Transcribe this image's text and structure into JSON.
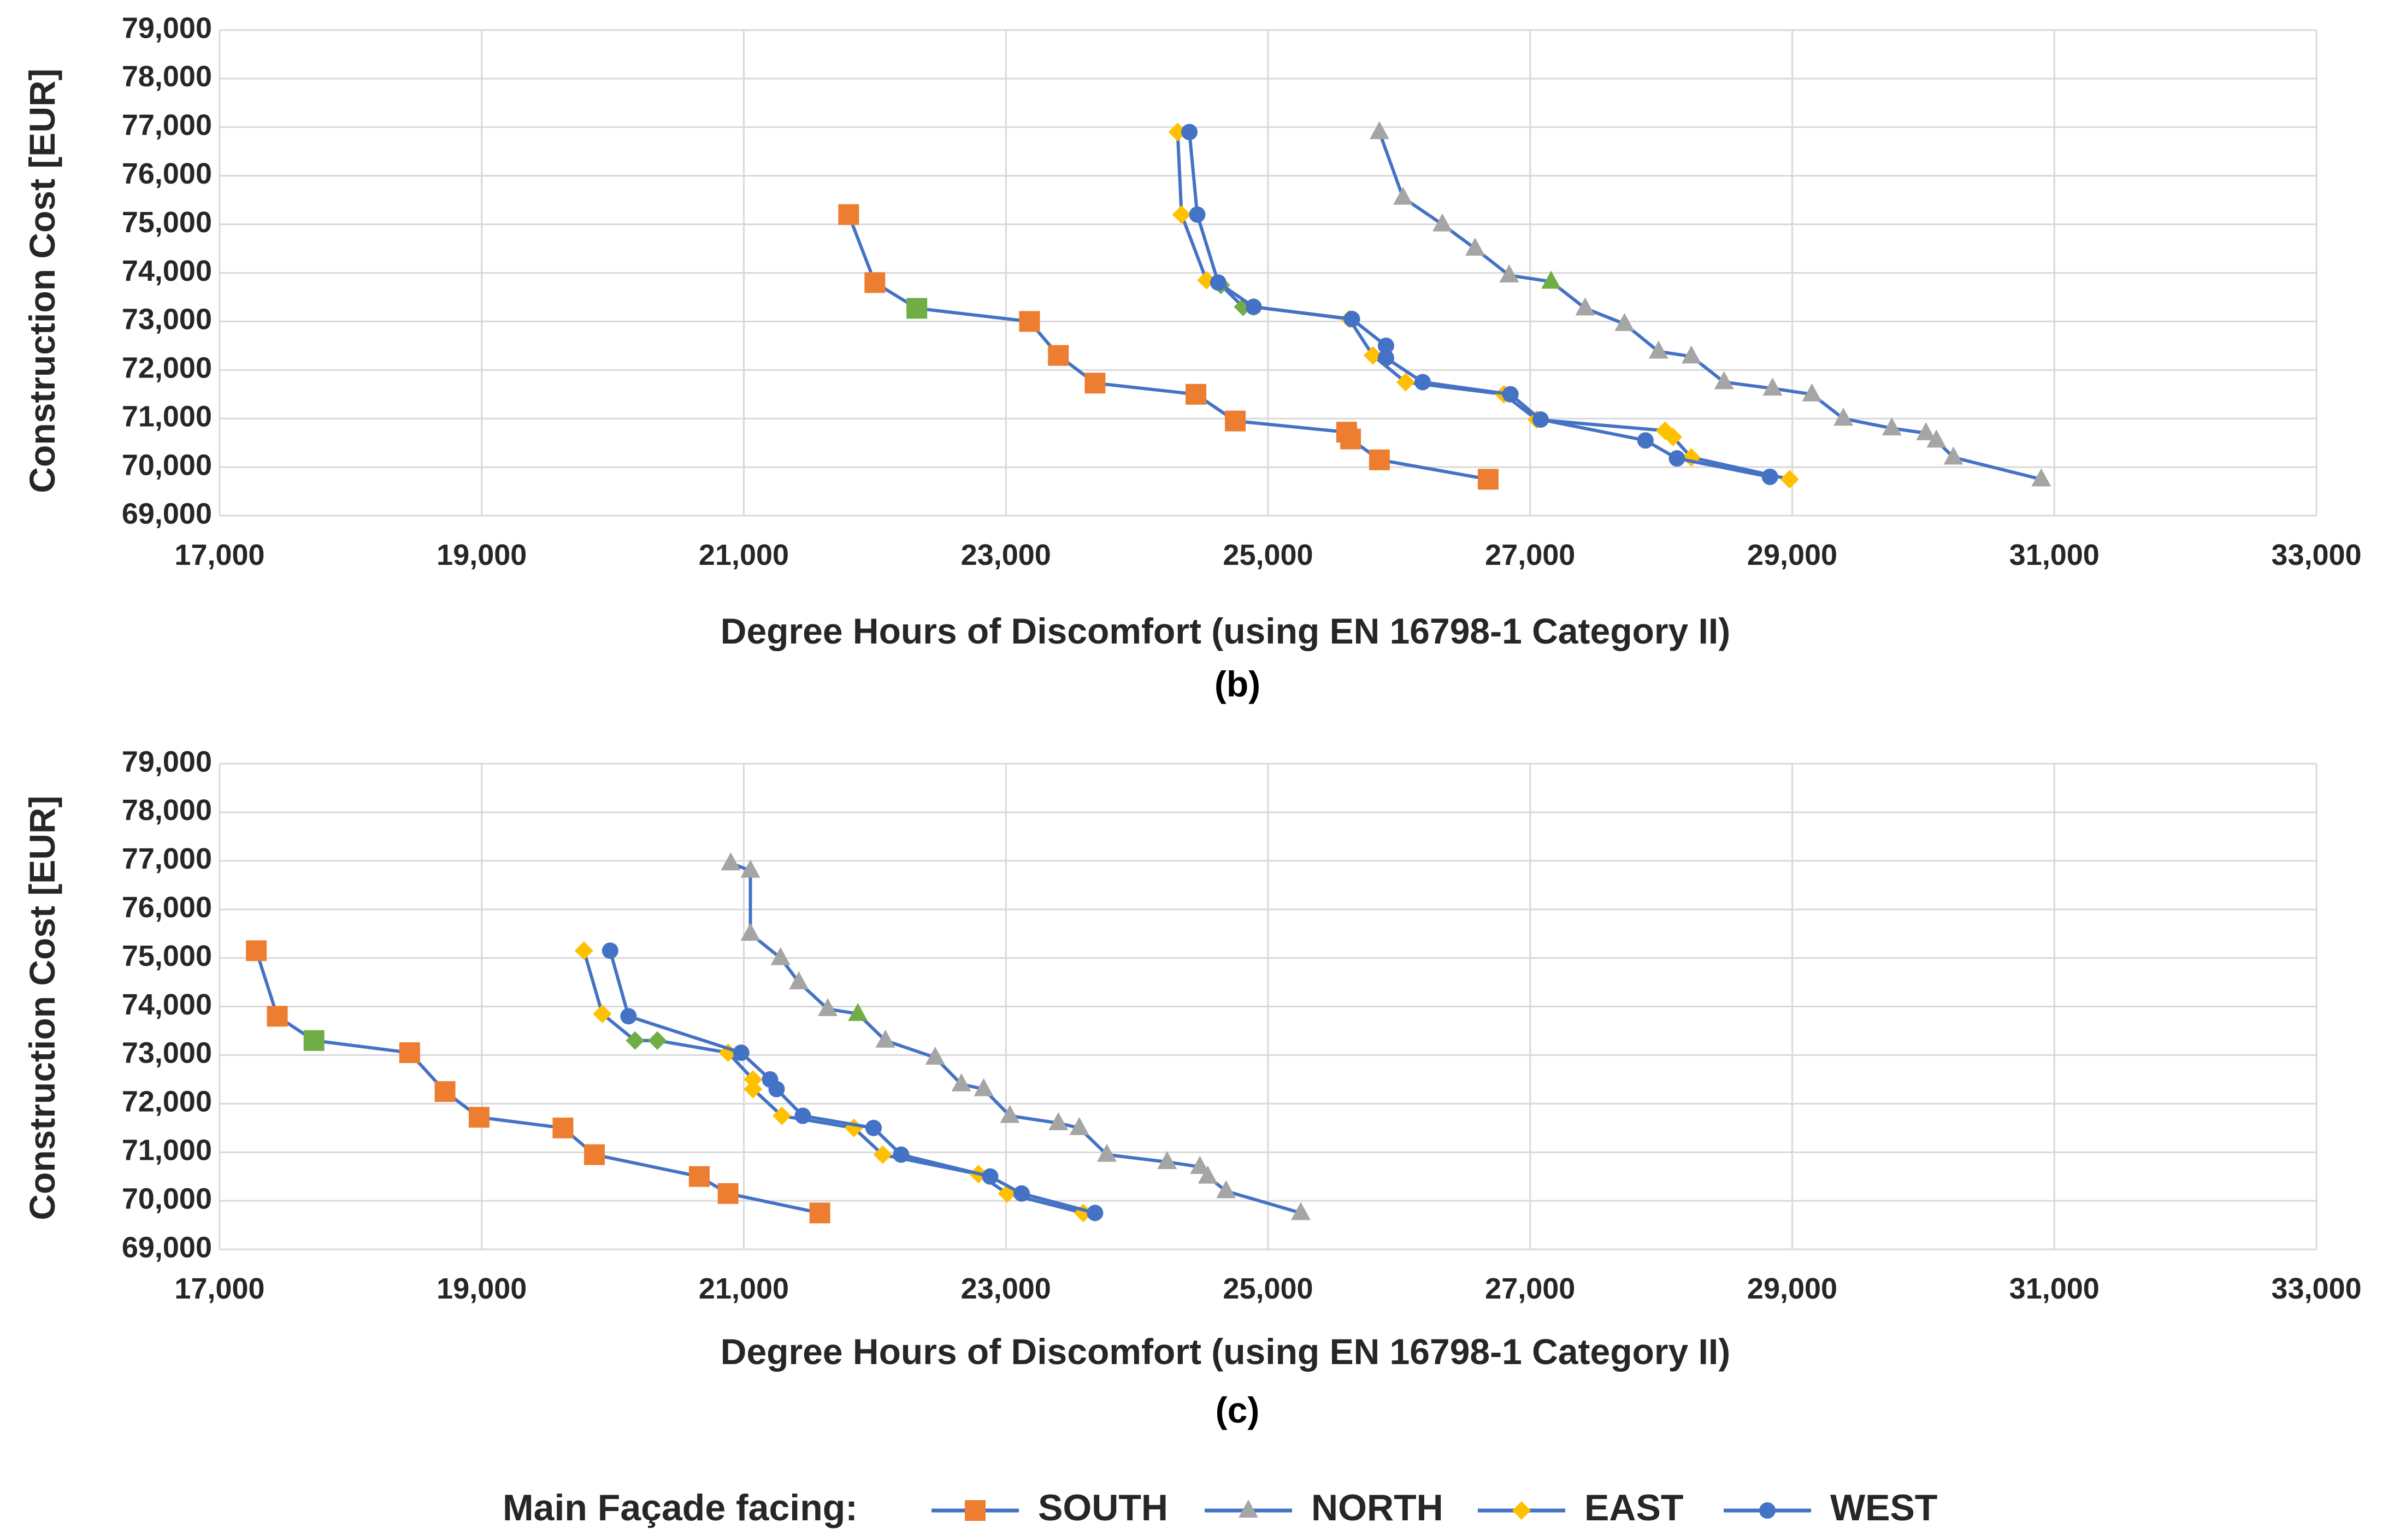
{
  "colors": {
    "line": "#4472C4",
    "south": "#ED7D31",
    "north": "#A5A5A5",
    "east": "#FFC000",
    "west": "#4472C4",
    "highlight": "#70AD47",
    "grid": "#D9D9D9",
    "axis_text": "#262626"
  },
  "legend": {
    "title": "Main Façade facing:",
    "entries": [
      {
        "key": "south",
        "label": "SOUTH",
        "marker": "square"
      },
      {
        "key": "north",
        "label": "NORTH",
        "marker": "triangle"
      },
      {
        "key": "east",
        "label": "EAST",
        "marker": "diamond"
      },
      {
        "key": "west",
        "label": "WEST",
        "marker": "circle"
      }
    ]
  },
  "chart_data": [
    {
      "type": "line",
      "panel_label": "(b)",
      "xlabel": "Degree Hours of Discomfort (using EN 16798-1 Category II)",
      "ylabel": "Construction Cost [EUR]",
      "xlim": [
        17000,
        33000
      ],
      "ylim": [
        69000,
        79000
      ],
      "xticks": [
        17000,
        19000,
        21000,
        23000,
        25000,
        27000,
        29000,
        31000,
        33000
      ],
      "yticks": [
        69000,
        70000,
        71000,
        72000,
        73000,
        74000,
        75000,
        76000,
        77000,
        78000,
        79000
      ],
      "xtick_labels": [
        "17,000",
        "19,000",
        "21,000",
        "23,000",
        "25,000",
        "27,000",
        "29,000",
        "31,000",
        "33,000"
      ],
      "ytick_labels": [
        "69,000",
        "70,000",
        "71,000",
        "72,000",
        "73,000",
        "74,000",
        "75,000",
        "76,000",
        "77,000",
        "78,000",
        "79,000"
      ],
      "grid": true,
      "series": [
        {
          "name": "SOUTH",
          "key": "south",
          "marker": "square",
          "highlight_index": 2,
          "x": [
            21800,
            22000,
            22320,
            23180,
            23400,
            23680,
            24450,
            24750,
            25600,
            25630,
            25850,
            26680
          ],
          "y": [
            75200,
            73800,
            73270,
            73000,
            72300,
            71730,
            71500,
            70950,
            70720,
            70580,
            70150,
            69750
          ]
        },
        {
          "name": "NORTH",
          "key": "north",
          "marker": "triangle",
          "highlight_index": 5,
          "x": [
            25850,
            26030,
            26330,
            26580,
            26840,
            27160,
            27420,
            27720,
            27980,
            28230,
            28480,
            28850,
            29150,
            29390,
            29760,
            30020,
            30100,
            30230,
            30900
          ],
          "y": [
            76900,
            75550,
            75000,
            74500,
            73950,
            73820,
            73270,
            72950,
            72380,
            72280,
            71750,
            71620,
            71500,
            71000,
            70800,
            70700,
            70550,
            70200,
            69750
          ]
        },
        {
          "name": "EAST",
          "key": "east",
          "marker": "diamond",
          "highlight_indices": [
            3,
            4
          ],
          "x": [
            24310,
            24340,
            24530,
            24640,
            24810,
            24890,
            25620,
            25800,
            26050,
            26800,
            27050,
            28030,
            28090,
            28230,
            28980
          ],
          "y": [
            76900,
            75200,
            73850,
            73750,
            73300,
            73300,
            73050,
            72300,
            71750,
            71500,
            70980,
            70750,
            70620,
            70200,
            69750
          ]
        },
        {
          "name": "WEST",
          "key": "west",
          "marker": "circle",
          "x": [
            24400,
            24460,
            24620,
            24890,
            25640,
            25900,
            25900,
            26180,
            26850,
            27080,
            27880,
            28120,
            28830
          ],
          "y": [
            76900,
            75200,
            73800,
            73300,
            73050,
            72500,
            72250,
            71750,
            71500,
            70980,
            70550,
            70180,
            69800
          ]
        }
      ]
    },
    {
      "type": "line",
      "panel_label": "(c)",
      "xlabel": "Degree Hours of Discomfort (using EN 16798-1 Category II)",
      "ylabel": "Construction Cost [EUR]",
      "xlim": [
        17000,
        33000
      ],
      "ylim": [
        69000,
        79000
      ],
      "xticks": [
        17000,
        19000,
        21000,
        23000,
        25000,
        27000,
        29000,
        31000,
        33000
      ],
      "yticks": [
        69000,
        70000,
        71000,
        72000,
        73000,
        74000,
        75000,
        76000,
        77000,
        78000,
        79000
      ],
      "xtick_labels": [
        "17,000",
        "19,000",
        "21,000",
        "23,000",
        "25,000",
        "27,000",
        "29,000",
        "31,000",
        "33,000"
      ],
      "ytick_labels": [
        "69,000",
        "70,000",
        "71,000",
        "72,000",
        "73,000",
        "74,000",
        "75,000",
        "76,000",
        "77,000",
        "78,000",
        "79,000"
      ],
      "grid": true,
      "series": [
        {
          "name": "SOUTH",
          "key": "south",
          "marker": "square",
          "highlight_index": 2,
          "x": [
            17280,
            17440,
            17720,
            18450,
            18720,
            18980,
            19620,
            19860,
            20660,
            20880,
            21580
          ],
          "y": [
            75150,
            73800,
            73300,
            73050,
            72250,
            71720,
            71500,
            70950,
            70500,
            70150,
            69750
          ]
        },
        {
          "name": "NORTH",
          "key": "north",
          "marker": "triangle",
          "highlight_index": 6,
          "x": [
            20900,
            21050,
            21050,
            21280,
            21420,
            21640,
            21870,
            22080,
            22460,
            22660,
            22830,
            23030,
            23400,
            23560,
            23770,
            24230,
            24480,
            24540,
            24680,
            25250
          ],
          "y": [
            76950,
            76800,
            75500,
            75000,
            74500,
            73950,
            73850,
            73300,
            72950,
            72400,
            72300,
            71750,
            71600,
            71500,
            70950,
            70800,
            70700,
            70500,
            70200,
            69750
          ]
        },
        {
          "name": "EAST",
          "key": "east",
          "marker": "diamond",
          "highlight_indices": [
            2,
            3
          ],
          "x": [
            19780,
            19920,
            20170,
            20340,
            20880,
            21070,
            21070,
            21290,
            21840,
            22060,
            22790,
            23010,
            23590
          ],
          "y": [
            75150,
            73850,
            73300,
            73300,
            73050,
            72500,
            72300,
            71750,
            71500,
            70950,
            70550,
            70150,
            69750
          ]
        },
        {
          "name": "WEST",
          "key": "west",
          "marker": "circle",
          "x": [
            19980,
            20120,
            20980,
            21200,
            21250,
            21450,
            21990,
            22200,
            22880,
            23120,
            23680
          ],
          "y": [
            75150,
            73800,
            73050,
            72500,
            72300,
            71750,
            71500,
            70950,
            70500,
            70150,
            69750
          ]
        }
      ]
    }
  ]
}
